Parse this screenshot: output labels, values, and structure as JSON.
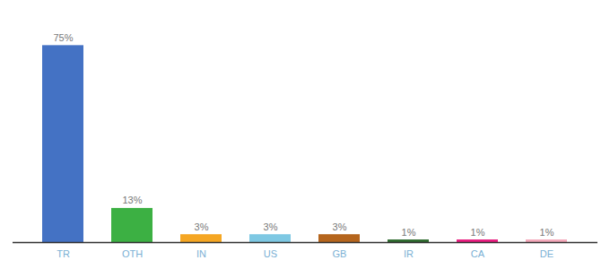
{
  "chart_data": {
    "type": "bar",
    "categories": [
      "TR",
      "OTH",
      "IN",
      "US",
      "GB",
      "IR",
      "CA",
      "DE"
    ],
    "values": [
      75,
      13,
      3,
      3,
      3,
      1,
      1,
      1
    ],
    "value_labels": [
      "75%",
      "13%",
      "3%",
      "3%",
      "3%",
      "1%",
      "1%",
      "1%"
    ],
    "colors": [
      "#4472c4",
      "#3cb043",
      "#f5a623",
      "#7ec8e3",
      "#b5651d",
      "#2d6a2d",
      "#e8197d",
      "#f4a7b9"
    ],
    "ylim": [
      0,
      84
    ],
    "data_labels": true,
    "tick_labels": "x",
    "grid": false
  }
}
